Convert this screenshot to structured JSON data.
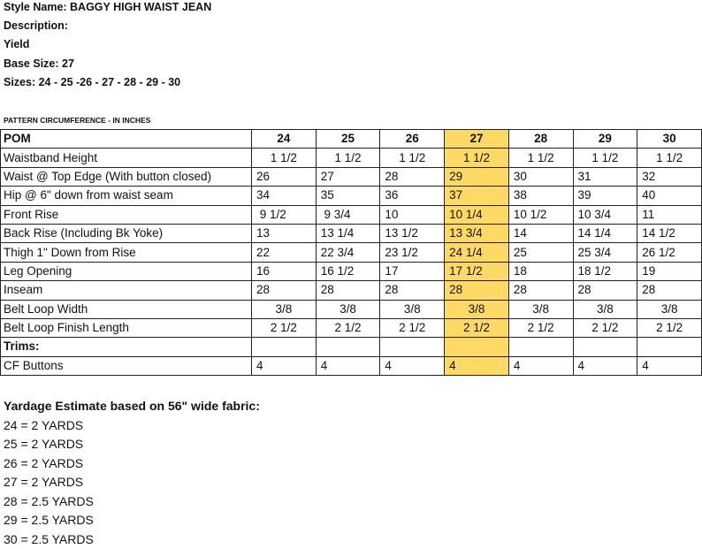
{
  "header": {
    "style_name": "Style Name: BAGGY HIGH WAIST JEAN",
    "description": "Description:",
    "yield": "Yield",
    "base_size": "Base Size: 27",
    "sizes": "Sizes: 24 - 25 -26 - 27 - 28 - 29 - 30"
  },
  "section_title": "PATTERN CIRCUMFERENCE - IN INCHES",
  "highlight_color": "#FFD966",
  "highlight_column": "27",
  "table": {
    "columns": [
      "POM",
      "24",
      "25",
      "26",
      "27",
      "28",
      "29",
      "30"
    ],
    "rows": [
      {
        "pom": "Waistband Height",
        "align": "center",
        "values": [
          "1 1/2",
          "1 1/2",
          "1 1/2",
          "1 1/2",
          "1 1/2",
          "1 1/2",
          "1 1/2"
        ]
      },
      {
        "pom": "Waist @ Top Edge (With button closed)",
        "align": "left",
        "values": [
          "26",
          "27",
          "28",
          "29",
          "30",
          "31",
          "32"
        ]
      },
      {
        "pom": "Hip @ 6\" down from waist seam",
        "align": "left",
        "values": [
          "34",
          "35",
          "36",
          "37",
          "38",
          "39",
          "40"
        ]
      },
      {
        "pom": "Front Rise",
        "align": "left",
        "values": [
          " 9 1/2",
          " 9 3/4",
          "10",
          "10 1/4",
          "10 1/2",
          "10 3/4",
          "11"
        ]
      },
      {
        "pom": "Back Rise (Including Bk Yoke)",
        "align": "left",
        "values": [
          "13",
          "13 1/4",
          "13 1/2",
          "13 3/4",
          "14",
          "14 1/4",
          "14 1/2"
        ]
      },
      {
        "pom": "Thigh 1\" Down from Rise",
        "align": "left",
        "values": [
          "22",
          "22 3/4",
          "23 1/2",
          "24 1/4",
          "25",
          "25 3/4",
          "26 1/2"
        ]
      },
      {
        "pom": "Leg Opening",
        "align": "left",
        "values": [
          "16",
          "16 1/2",
          "17",
          "17 1/2",
          "18",
          "18 1/2",
          "19"
        ]
      },
      {
        "pom": "Inseam",
        "align": "left",
        "values": [
          "28",
          "28",
          "28",
          "28",
          "28",
          "28",
          "28"
        ]
      },
      {
        "pom": "Belt Loop Width",
        "align": "center",
        "values": [
          "3/8",
          "3/8",
          "3/8",
          "3/8",
          "3/8",
          "3/8",
          "3/8"
        ]
      },
      {
        "pom": "Belt Loop Finish Length",
        "align": "center",
        "values": [
          "2 1/2",
          "2 1/2",
          "2 1/2",
          "2 1/2",
          "2 1/2",
          "2 1/2",
          "2 1/2"
        ]
      },
      {
        "pom": "Trims:",
        "align": "left",
        "bold": true,
        "values": [
          "",
          "",
          "",
          "",
          "",
          "",
          ""
        ]
      },
      {
        "pom": "CF Buttons",
        "align": "left",
        "values": [
          "4",
          "4",
          "4",
          "4",
          "4",
          "4",
          "4"
        ]
      }
    ]
  },
  "yardage": {
    "title": "Yardage Estimate based on 56\" wide fabric:",
    "items": [
      "24 = 2 YARDS",
      "25 = 2 YARDS",
      "26 = 2 YARDS",
      "27 = 2 YARDS",
      "28 = 2.5 YARDS",
      "29 = 2.5 YARDS",
      "30 = 2.5 YARDS"
    ]
  }
}
